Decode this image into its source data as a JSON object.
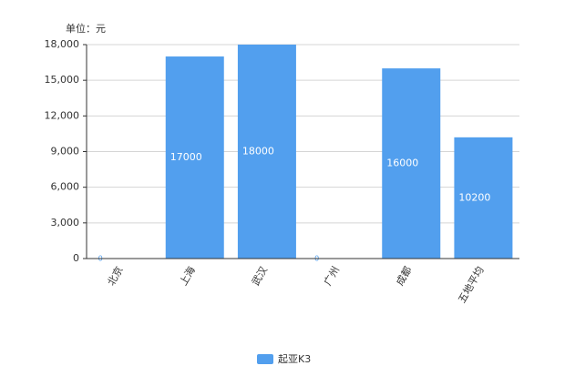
{
  "chart_data": {
    "type": "bar",
    "unit_label": "单位：元",
    "categories": [
      "北京",
      "上海",
      "武汉",
      "广州",
      "成都",
      "五地平均"
    ],
    "series": [
      {
        "name": "起亚K3",
        "color": "#529fee",
        "values": [
          0,
          17000,
          18000,
          0,
          16000,
          10200
        ]
      }
    ],
    "ylim": [
      0,
      18000
    ],
    "yticks": [
      0,
      {
        "value": 3000,
        "label": "3,000"
      },
      {
        "value": 6000,
        "label": "6,000"
      },
      {
        "value": 9000,
        "label": "9,000"
      },
      {
        "value": 12000,
        "label": "12,000"
      },
      {
        "value": 15000,
        "label": "15,000"
      },
      {
        "value": 18000,
        "label": "18,000"
      }
    ],
    "grid": true
  }
}
